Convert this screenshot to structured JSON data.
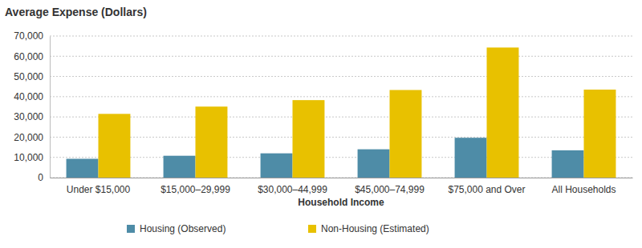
{
  "chart_data": {
    "type": "bar",
    "title": "Average Expense (Dollars)",
    "x_label": "Household Income",
    "categories": [
      "Under $15,000",
      "$15,000–29,999",
      "$30,000–44,999",
      "$45,000–74,999",
      "$75,000 and Over",
      "All Households"
    ],
    "series": [
      {
        "name": "Housing (Observed)",
        "color": "#4e8ca7",
        "values": [
          9300,
          10800,
          12000,
          14000,
          19700,
          13500
        ]
      },
      {
        "name": "Non-Housing (Estimated)",
        "color": "#e8c100",
        "values": [
          31500,
          35100,
          38300,
          43300,
          64300,
          43500
        ]
      }
    ],
    "ylim": [
      0,
      70000
    ],
    "yticks": [
      0,
      {
        "value": 10000,
        "label": "10,000"
      },
      {
        "value": 20000,
        "label": "20,000"
      },
      {
        "value": 30000,
        "label": "30,000"
      },
      {
        "value": 40000,
        "label": "40,000"
      },
      {
        "value": 50000,
        "label": "50,000"
      },
      {
        "value": 60000,
        "label": "60,000"
      },
      {
        "value": 70000,
        "label": "70,000"
      }
    ],
    "grid": true,
    "legend": "bottom"
  }
}
